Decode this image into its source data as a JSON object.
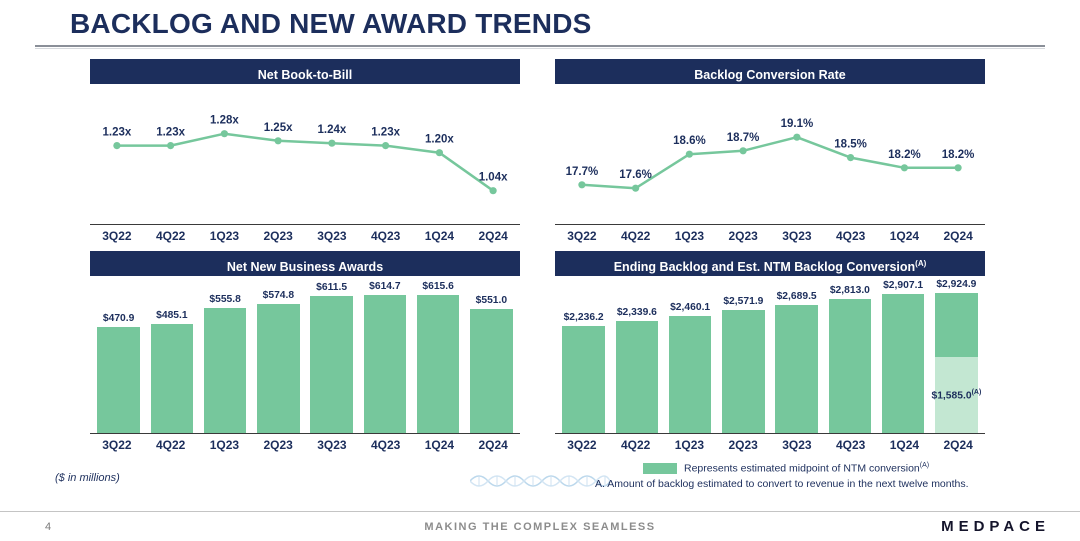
{
  "page": {
    "title": "BACKLOG AND NEW AWARD TRENDS",
    "dollars_note": "($ in millions)",
    "legend_label": "Represents estimated midpoint of NTM conversion",
    "legend_superscript": "(A)",
    "footnote": "A. Amount of backlog estimated to convert to revenue in the next twelve months.",
    "page_number": "4",
    "footer_tagline": "MAKING THE COMPLEX SEAMLESS",
    "brand": "MEDPACE"
  },
  "colors": {
    "navy": "#1c2e5c",
    "green": "#76c79c",
    "light_green": "#c3e7d2",
    "axis": "#3a3a3a",
    "tagline_gray": "#8c8c8c"
  },
  "chart_data": [
    {
      "type": "line",
      "title": "Net Book-to-Bill",
      "categories": [
        "3Q22",
        "4Q22",
        "1Q23",
        "2Q23",
        "3Q23",
        "4Q23",
        "1Q24",
        "2Q24"
      ],
      "values": [
        1.23,
        1.23,
        1.28,
        1.25,
        1.24,
        1.23,
        1.2,
        1.04
      ],
      "labels": [
        "1.23x",
        "1.23x",
        "1.28x",
        "1.25x",
        "1.24x",
        "1.23x",
        "1.20x",
        "1.04x"
      ],
      "ylim": [
        0.95,
        1.38
      ],
      "grid": false,
      "legend": "none"
    },
    {
      "type": "line",
      "title": "Backlog Conversion Rate",
      "categories": [
        "3Q22",
        "4Q22",
        "1Q23",
        "2Q23",
        "3Q23",
        "4Q23",
        "1Q24",
        "2Q24"
      ],
      "values": [
        17.7,
        17.6,
        18.6,
        18.7,
        19.1,
        18.5,
        18.2,
        18.2
      ],
      "labels": [
        "17.7%",
        "17.6%",
        "18.6%",
        "18.7%",
        "19.1%",
        "18.5%",
        "18.2%",
        "18.2%"
      ],
      "ylim": [
        16.9,
        19.9
      ],
      "grid": false,
      "legend": "none"
    },
    {
      "type": "bar",
      "title": "Net New Business Awards",
      "categories": [
        "3Q22",
        "4Q22",
        "1Q23",
        "2Q23",
        "3Q23",
        "4Q23",
        "1Q24",
        "2Q24"
      ],
      "values": [
        470.9,
        485.1,
        555.8,
        574.8,
        611.5,
        614.7,
        615.6,
        551.0
      ],
      "labels": [
        "$470.9",
        "$485.1",
        "$555.8",
        "$574.8",
        "$611.5",
        "$614.7",
        "$615.6",
        "$551.0"
      ],
      "ylim": [
        0,
        660
      ],
      "grid": false,
      "legend": "none"
    },
    {
      "type": "bar",
      "title": "Ending Backlog and Est. NTM Backlog Conversion",
      "title_superscript": "(A)",
      "categories": [
        "3Q22",
        "4Q22",
        "1Q23",
        "2Q23",
        "3Q23",
        "4Q23",
        "1Q24",
        "2Q24"
      ],
      "values": [
        2236.2,
        2339.6,
        2460.1,
        2571.9,
        2689.5,
        2813.0,
        2907.1,
        2924.9
      ],
      "labels": [
        "$2,236.2",
        "$2,339.6",
        "$2,460.1",
        "$2,571.9",
        "$2,689.5",
        "$2,813.0",
        "$2,907.1",
        "$2,924.9"
      ],
      "ylim": [
        0,
        3100
      ],
      "grid": false,
      "legend": "none",
      "ntm_overlay": {
        "category": "2Q24",
        "value": 1585.0,
        "label": "$1,585.0",
        "label_superscript": "(A)"
      }
    }
  ]
}
